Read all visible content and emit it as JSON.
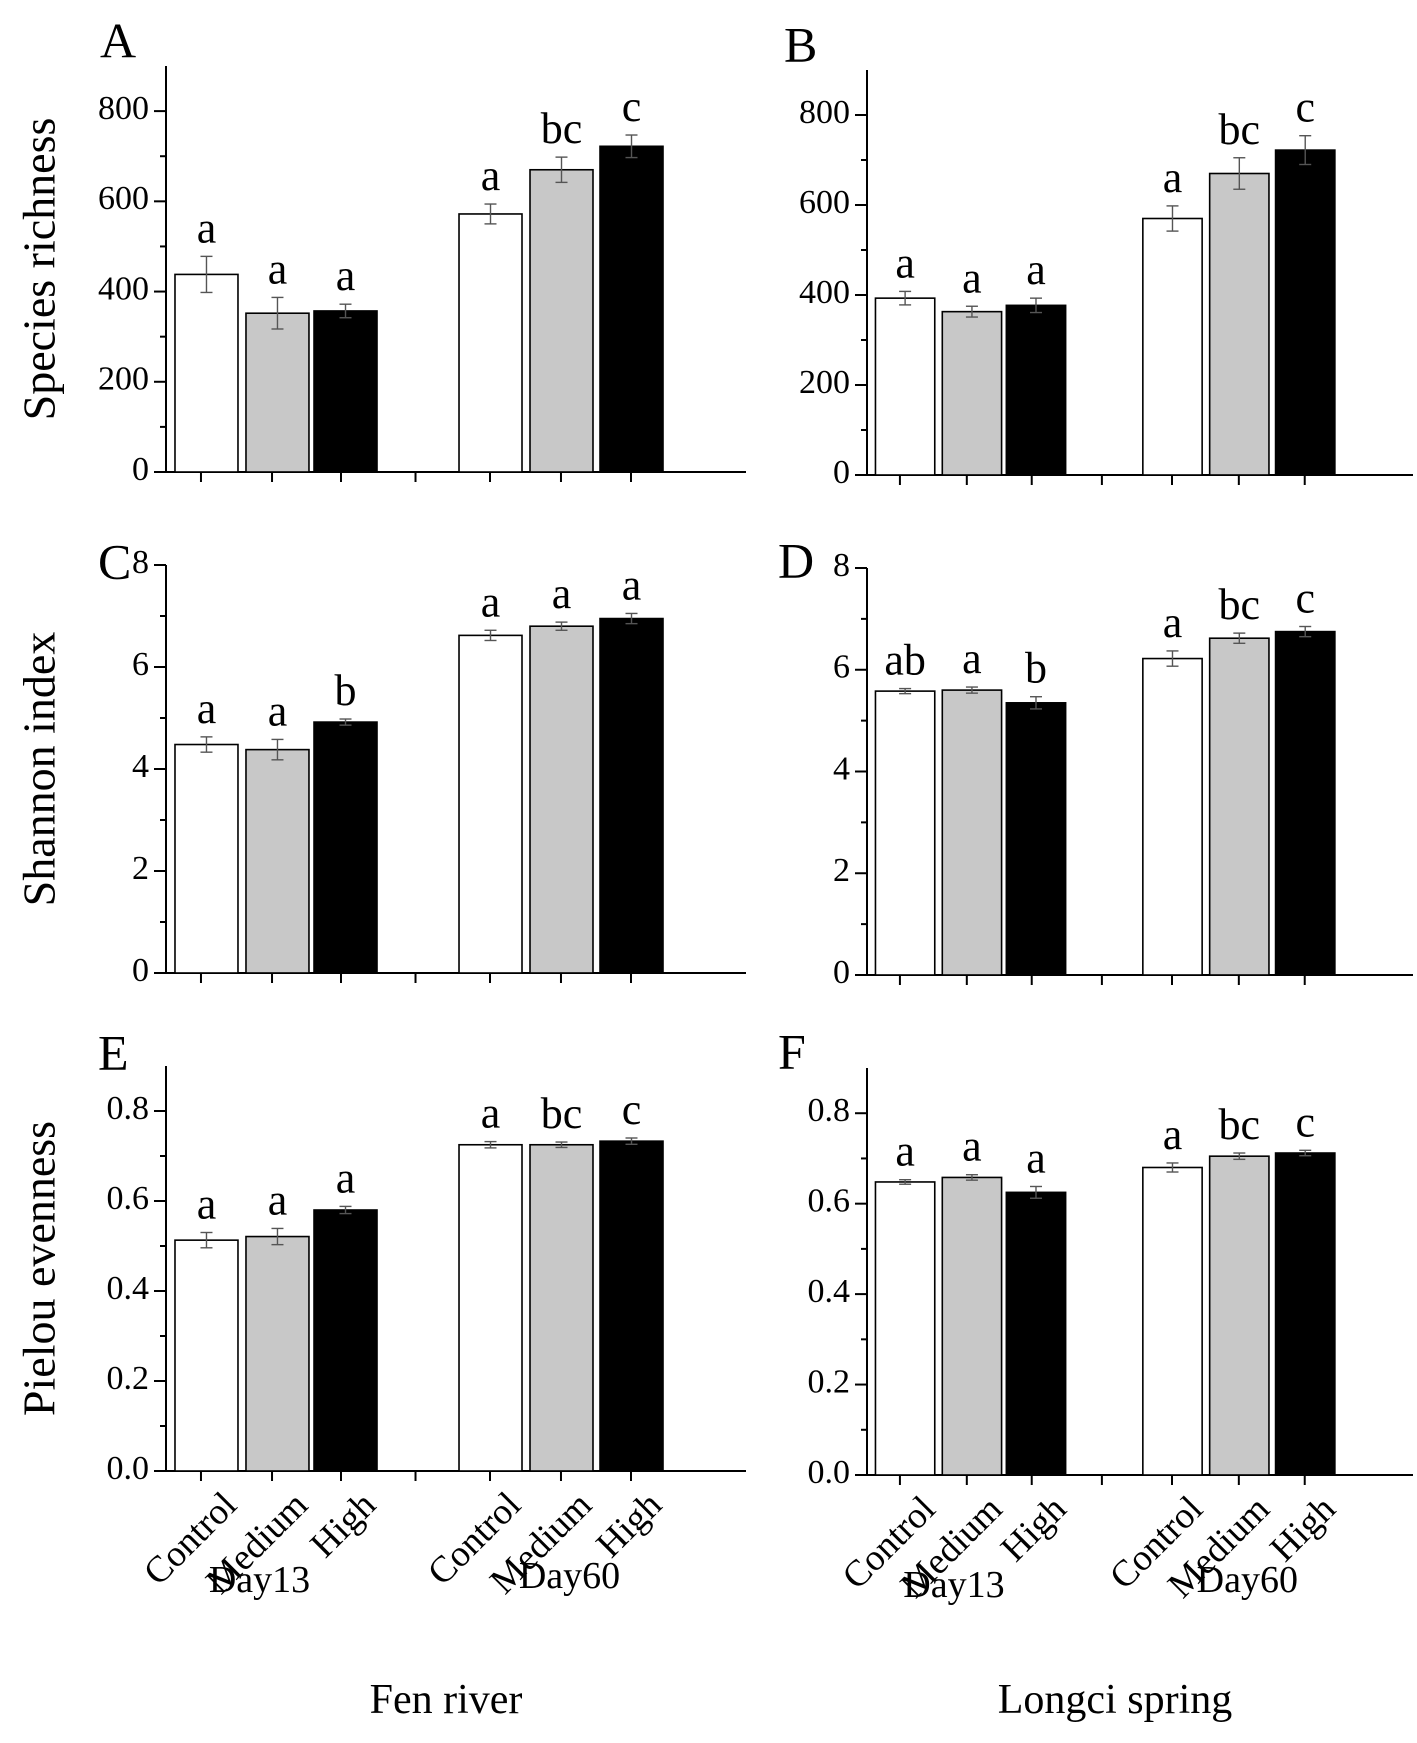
{
  "chart_data": [
    {
      "panel": "A",
      "type": "bar",
      "ylabel": "Species richness",
      "ylim": [
        0,
        900
      ],
      "yticks": [
        0,
        200,
        400,
        600,
        800
      ],
      "groups": [
        "Day13",
        "Day60"
      ],
      "categories": [
        "Control",
        "Medium",
        "High",
        "Control",
        "Medium",
        "High"
      ],
      "values": [
        438,
        352,
        357,
        572,
        670,
        722
      ],
      "errors": [
        40,
        35,
        15,
        22,
        28,
        25
      ],
      "letters": [
        "a",
        "a",
        "a",
        "a",
        "bc",
        "c"
      ],
      "xlabel": "Fen river"
    },
    {
      "panel": "B",
      "type": "bar",
      "ylabel": "",
      "ylim": [
        0,
        900
      ],
      "yticks": [
        0,
        200,
        400,
        600,
        800
      ],
      "groups": [
        "Day13",
        "Day60"
      ],
      "categories": [
        "Control",
        "Medium",
        "High",
        "Control",
        "Medium",
        "High"
      ],
      "values": [
        393,
        363,
        377,
        570,
        670,
        722
      ],
      "errors": [
        15,
        12,
        16,
        28,
        35,
        32
      ],
      "letters": [
        "a",
        "a",
        "a",
        "a",
        "bc",
        "c"
      ],
      "xlabel": "Longci spring"
    },
    {
      "panel": "C",
      "type": "bar",
      "ylabel": "Shannon index",
      "ylim": [
        0,
        8
      ],
      "yticks": [
        0,
        2,
        4,
        6,
        8
      ],
      "groups": [
        "Day13",
        "Day60"
      ],
      "categories": [
        "Control",
        "Medium",
        "High",
        "Control",
        "Medium",
        "High"
      ],
      "values": [
        4.48,
        4.38,
        4.92,
        6.62,
        6.8,
        6.95
      ],
      "errors": [
        0.15,
        0.2,
        0.06,
        0.1,
        0.08,
        0.1
      ],
      "letters": [
        "a",
        "a",
        "b",
        "a",
        "a",
        "a"
      ],
      "xlabel": "Fen river"
    },
    {
      "panel": "D",
      "type": "bar",
      "ylabel": "",
      "ylim": [
        0,
        8
      ],
      "yticks": [
        0,
        2,
        4,
        6,
        8
      ],
      "groups": [
        "Day13",
        "Day60"
      ],
      "categories": [
        "Control",
        "Medium",
        "High",
        "Control",
        "Medium",
        "High"
      ],
      "values": [
        5.58,
        5.6,
        5.35,
        6.22,
        6.62,
        6.75
      ],
      "errors": [
        0.05,
        0.06,
        0.12,
        0.15,
        0.1,
        0.1
      ],
      "letters": [
        "ab",
        "a",
        "b",
        "a",
        "bc",
        "c"
      ],
      "xlabel": "Longci spring"
    },
    {
      "panel": "E",
      "type": "bar",
      "ylabel": "Pielou evenness",
      "ylim": [
        0,
        0.9
      ],
      "yticks": [
        "0.0",
        "0.2",
        "0.4",
        "0.6",
        "0.8"
      ],
      "groups": [
        "Day13",
        "Day60"
      ],
      "categories": [
        "Control",
        "Medium",
        "High",
        "Control",
        "Medium",
        "High"
      ],
      "values": [
        0.513,
        0.521,
        0.58,
        0.725,
        0.725,
        0.733
      ],
      "errors": [
        0.017,
        0.018,
        0.008,
        0.007,
        0.006,
        0.007
      ],
      "letters": [
        "a",
        "a",
        "a",
        "a",
        "bc",
        "c"
      ],
      "xlabel": "Fen river"
    },
    {
      "panel": "F",
      "type": "bar",
      "ylabel": "",
      "ylim": [
        0,
        0.9
      ],
      "yticks": [
        "0.0",
        "0.2",
        "0.4",
        "0.6",
        "0.8"
      ],
      "groups": [
        "Day13",
        "Day60"
      ],
      "categories": [
        "Control",
        "Medium",
        "High",
        "Control",
        "Medium",
        "High"
      ],
      "values": [
        0.648,
        0.658,
        0.625,
        0.68,
        0.705,
        0.712
      ],
      "errors": [
        0.005,
        0.006,
        0.013,
        0.01,
        0.007,
        0.006
      ],
      "letters": [
        "a",
        "a",
        "a",
        "a",
        "bc",
        "c"
      ],
      "xlabel": "Longci spring"
    }
  ],
  "bar_colors": [
    "#ffffff",
    "#c8c8c8",
    "#000000"
  ]
}
